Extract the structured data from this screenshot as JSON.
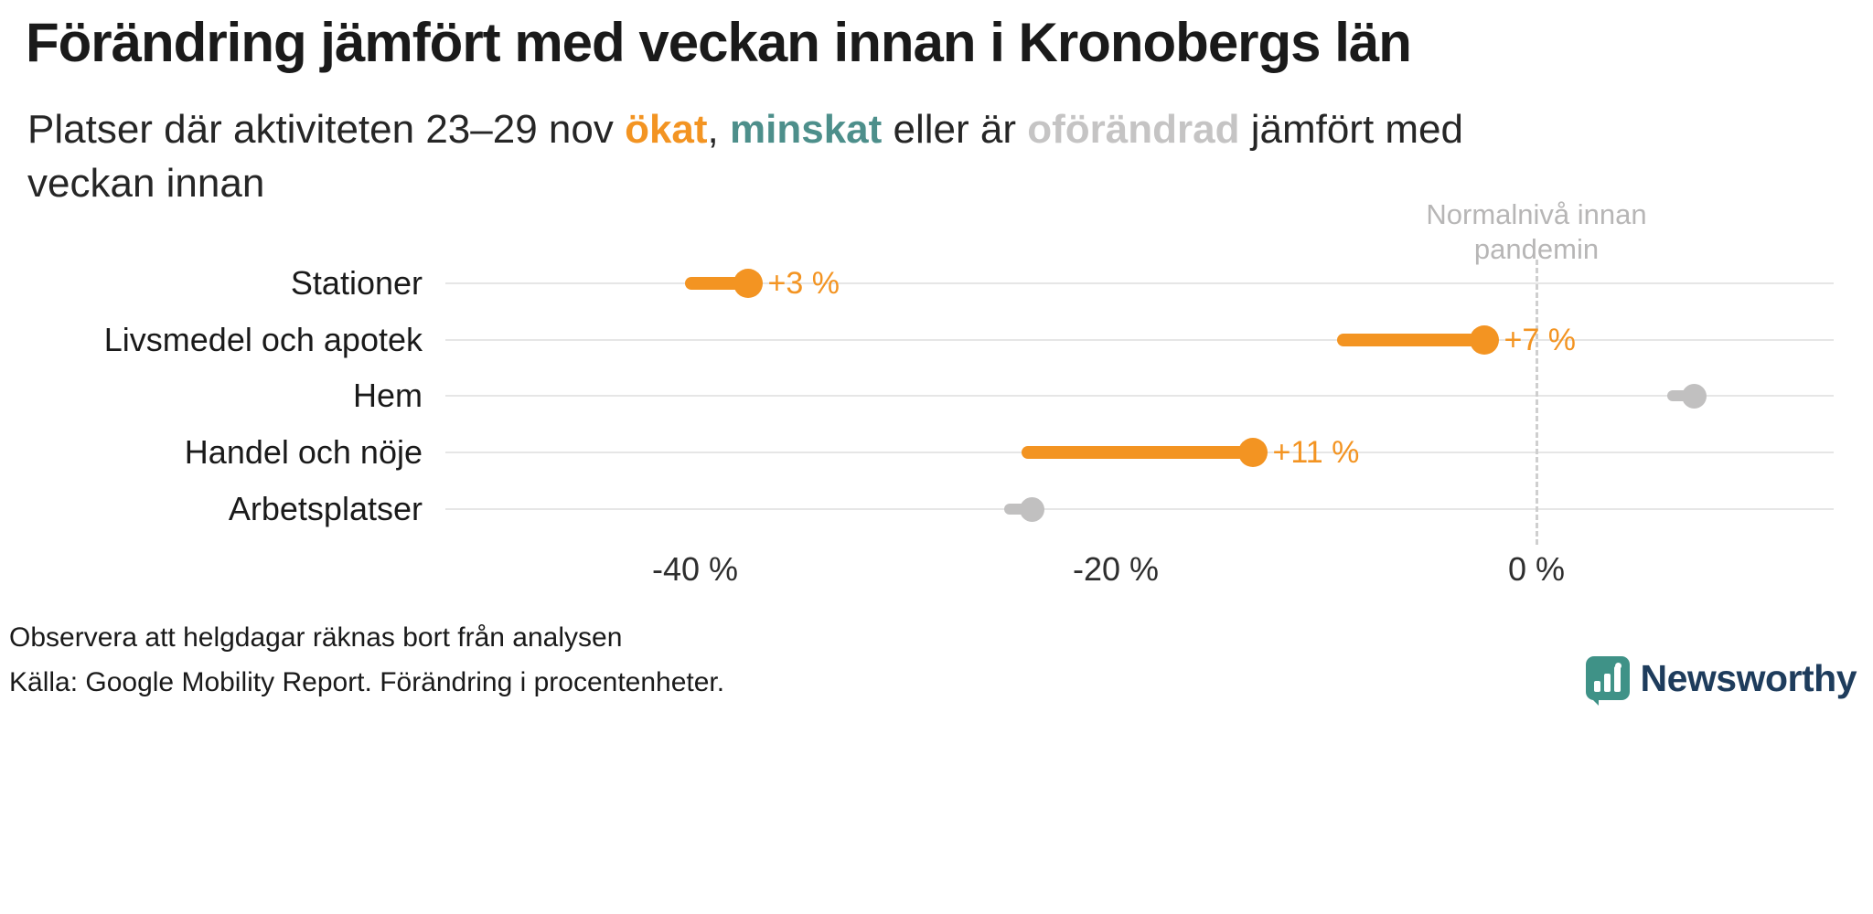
{
  "header": {
    "title": "Förändring jämfört med veckan innan i Kronobergs län",
    "subtitle_parts": {
      "lead": "Platser där aktiviteten 23–29 nov ",
      "increase_word": "ökat",
      "comma": ", ",
      "decrease_word": "minskat",
      "middle": " eller är ",
      "unchanged_word": "oförändrad",
      "tail": " jämfört med veckan innan"
    }
  },
  "colors": {
    "increase": "#f39422",
    "decrease": "#4d8f8b",
    "unchanged": "#c1c0c0",
    "grid": "#e6e6e6",
    "zero_line": "#cfcfcf",
    "annotation": "#b7b6b6",
    "logo_teal": "#3f9287",
    "logo_navy": "#1e3c5c"
  },
  "chart_data": {
    "type": "scatter",
    "chart_style": "dumbbell",
    "title": "Förändring jämfört med veckan innan i Kronobergs län",
    "xlabel": "",
    "ylabel": "",
    "x_unit": "%",
    "xlim": [
      -52,
      16
    ],
    "x_axis": {
      "ticks": [
        -40,
        -20,
        0
      ],
      "tick_labels": [
        "-40 %",
        "-20 %",
        "0 %"
      ]
    },
    "annotation": {
      "x": 0,
      "text_lines": [
        "Normalnivå innan",
        "pandemin"
      ]
    },
    "rows": [
      {
        "category": "Stationer",
        "start": -40.5,
        "end": -37.5,
        "change": 3,
        "label": "+3 %",
        "status": "increase"
      },
      {
        "category": "Livsmedel och apotek",
        "start": -9.5,
        "end": -2.5,
        "change": 7,
        "label": "+7 %",
        "status": "increase"
      },
      {
        "category": "Hem",
        "start": 7.5,
        "end": 7.5,
        "change": 0,
        "label": "",
        "status": "unchanged"
      },
      {
        "category": "Handel och nöje",
        "start": -24.5,
        "end": -13.5,
        "change": 11,
        "label": "+11 %",
        "status": "increase"
      },
      {
        "category": "Arbetsplatser",
        "start": -24,
        "end": -24,
        "change": 0,
        "label": "",
        "status": "unchanged"
      }
    ]
  },
  "footer": {
    "note": "Observera att helgdagar räknas bort från analysen",
    "source": "Källa: Google Mobility Report. Förändring i procentenheter.",
    "logo_text": "Newsworthy"
  }
}
